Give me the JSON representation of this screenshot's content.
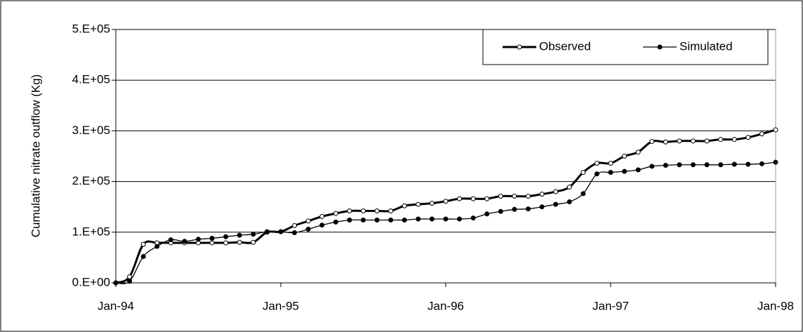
{
  "chart_data": {
    "type": "line",
    "y_label": "Cumulative nitrate outflow (Kg)",
    "x": [
      "1994-01",
      "1994-02",
      "1994-03",
      "1994-04",
      "1994-05",
      "1994-06",
      "1994-07",
      "1994-08",
      "1994-09",
      "1994-10",
      "1994-11",
      "1994-12",
      "1995-01",
      "1995-02",
      "1995-03",
      "1995-04",
      "1995-05",
      "1995-06",
      "1995-07",
      "1995-08",
      "1995-09",
      "1995-10",
      "1995-11",
      "1995-12",
      "1996-01",
      "1996-02",
      "1996-03",
      "1996-04",
      "1996-05",
      "1996-06",
      "1996-07",
      "1996-08",
      "1996-09",
      "1996-10",
      "1996-11",
      "1996-12",
      "1997-01",
      "1997-02",
      "1997-03",
      "1997-04",
      "1997-05",
      "1997-06",
      "1997-07",
      "1997-08",
      "1997-09",
      "1997-10",
      "1997-11",
      "1997-12",
      "1998-01"
    ],
    "series": [
      {
        "name": "Observed",
        "color": "#000000",
        "marker": "open",
        "values": [
          0,
          12000,
          76000,
          79000,
          79000,
          79000,
          79000,
          79000,
          79000,
          80000,
          80000,
          100000,
          101000,
          113000,
          122000,
          131000,
          137000,
          142000,
          142000,
          142000,
          142000,
          152000,
          155000,
          157000,
          161000,
          166000,
          166000,
          166000,
          171000,
          171000,
          171000,
          175000,
          180000,
          189000,
          218000,
          236000,
          236000,
          250000,
          258000,
          279000,
          278000,
          280000,
          280000,
          280000,
          283000,
          283000,
          287000,
          294000,
          302000
        ]
      },
      {
        "name": "Simulated",
        "color": "#000000",
        "marker": "filled",
        "values": [
          0,
          3000,
          52000,
          72000,
          85000,
          82000,
          86000,
          88000,
          91000,
          94000,
          96000,
          101000,
          101000,
          99000,
          106000,
          114000,
          120000,
          124000,
          124000,
          124000,
          124000,
          124000,
          126000,
          126000,
          126000,
          126000,
          128000,
          136000,
          141000,
          145000,
          146000,
          150000,
          155000,
          160000,
          176000,
          215000,
          218000,
          220000,
          223000,
          230000,
          232000,
          233000,
          233000,
          233000,
          233000,
          234000,
          234000,
          235000,
          238000
        ]
      }
    ],
    "xlim": [
      "1994-01",
      "1998-01"
    ],
    "xticks": [
      {
        "value": "1994-01",
        "label": "Jan-94"
      },
      {
        "value": "1995-01",
        "label": "Jan-95"
      },
      {
        "value": "1996-01",
        "label": "Jan-96"
      },
      {
        "value": "1997-01",
        "label": "Jan-97"
      },
      {
        "value": "1998-01",
        "label": "Jan-98"
      }
    ],
    "ylim": [
      0,
      500000
    ],
    "yticks": [
      {
        "value": 0,
        "label": "0.E+00"
      },
      {
        "value": 100000,
        "label": "1.E+05"
      },
      {
        "value": 200000,
        "label": "2.E+05"
      },
      {
        "value": 300000,
        "label": "3.E+05"
      },
      {
        "value": 400000,
        "label": "4.E+05"
      },
      {
        "value": 500000,
        "label": "5.E+05"
      }
    ],
    "grid": true,
    "legend": "top-right"
  }
}
